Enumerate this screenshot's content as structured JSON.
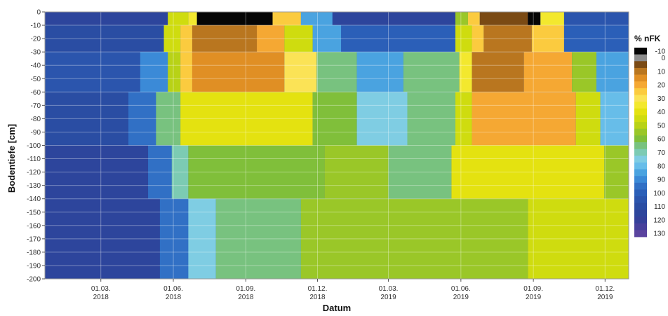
{
  "chart_data": {
    "type": "heatmap",
    "xlabel": "Datum",
    "ylabel": "Bodentiefe [cm]",
    "ylim": [
      -200,
      0
    ],
    "y_ticks": [
      0,
      -10,
      -20,
      -30,
      -40,
      -50,
      -60,
      -70,
      -80,
      -90,
      -100,
      -110,
      -120,
      -130,
      -140,
      -150,
      -160,
      -170,
      -180,
      -190,
      -200
    ],
    "x_range": [
      "2017-12-20",
      "2019-12-31"
    ],
    "x_ticks": [
      {
        "line1": "01.03.",
        "line2": "2018",
        "date": "2018-03-01"
      },
      {
        "line1": "01.06.",
        "line2": "2018",
        "date": "2018-06-01"
      },
      {
        "line1": "01.09.",
        "line2": "2018",
        "date": "2018-09-01"
      },
      {
        "line1": "01.12.",
        "line2": "2018",
        "date": "2018-12-01"
      },
      {
        "line1": "01.03.",
        "line2": "2019",
        "date": "2019-03-01"
      },
      {
        "line1": "01.06.",
        "line2": "2019",
        "date": "2019-06-01"
      },
      {
        "line1": "01.09.",
        "line2": "2019",
        "date": "2019-09-01"
      },
      {
        "line1": "01.12.",
        "line2": "2019",
        "date": "2019-12-01"
      }
    ],
    "grid": true,
    "legend": {
      "title": "% nFK",
      "placement": "right",
      "entries": [
        {
          "label": "-10",
          "color": "#050505"
        },
        {
          "label": "0",
          "color": "#8c8c8c"
        },
        {
          "label": "",
          "color": "#7a4a14"
        },
        {
          "label": "10",
          "color": "#b9761f"
        },
        {
          "label": "",
          "color": "#e08f24"
        },
        {
          "label": "20",
          "color": "#f5a833"
        },
        {
          "label": "",
          "color": "#fbcb3f"
        },
        {
          "label": "30",
          "color": "#fbe356"
        },
        {
          "label": "",
          "color": "#f3e82e"
        },
        {
          "label": "40",
          "color": "#e4e210"
        },
        {
          "label": "",
          "color": "#cfdc0f"
        },
        {
          "label": "50",
          "color": "#b8d216"
        },
        {
          "label": "",
          "color": "#9ac728"
        },
        {
          "label": "60",
          "color": "#80bf3a"
        },
        {
          "label": "",
          "color": "#78c27f"
        },
        {
          "label": "70",
          "color": "#7ccbb3"
        },
        {
          "label": "",
          "color": "#7fcde3"
        },
        {
          "label": "80",
          "color": "#67bde9"
        },
        {
          "label": "",
          "color": "#4aa3e0"
        },
        {
          "label": "90",
          "color": "#3b8ad7"
        },
        {
          "label": "",
          "color": "#3170c5"
        },
        {
          "label": "100",
          "color": "#2b5fb8"
        },
        {
          "label": "",
          "color": "#2b55ad"
        },
        {
          "label": "110",
          "color": "#2a4da3"
        },
        {
          "label": "",
          "color": "#2d459c"
        },
        {
          "label": "120",
          "color": "#34409a"
        },
        {
          "label": "",
          "color": "#46409c"
        },
        {
          "label": "130",
          "color": "#5b449f"
        }
      ]
    },
    "cells_note": "",
    "depth_layers": [
      {
        "depth": [
          0,
          -10
        ],
        "segments": [
          [
            "2017-12-20",
            "2018-05-25",
            110
          ],
          [
            "2018-05-25",
            "2018-06-20",
            40
          ],
          [
            "2018-06-20",
            "2018-07-01",
            30
          ],
          [
            "2018-07-01",
            "2018-10-05",
            -10
          ],
          [
            "2018-10-05",
            "2018-11-10",
            20
          ],
          [
            "2018-11-10",
            "2018-12-20",
            80
          ],
          [
            "2018-12-20",
            "2019-05-25",
            110
          ],
          [
            "2019-05-25",
            "2019-06-10",
            50
          ],
          [
            "2019-06-10",
            "2019-06-25",
            20
          ],
          [
            "2019-06-25",
            "2019-08-25",
            0
          ],
          [
            "2019-08-25",
            "2019-09-10",
            -10
          ],
          [
            "2019-09-10",
            "2019-10-10",
            30
          ],
          [
            "2019-10-10",
            "2019-12-31",
            100
          ]
        ]
      },
      {
        "depth": [
          -10,
          -30
        ],
        "segments": [
          [
            "2017-12-20",
            "2018-05-20",
            105
          ],
          [
            "2018-05-20",
            "2018-06-10",
            40
          ],
          [
            "2018-06-10",
            "2018-06-25",
            20
          ],
          [
            "2018-06-25",
            "2018-09-15",
            5
          ],
          [
            "2018-09-15",
            "2018-10-20",
            15
          ],
          [
            "2018-10-20",
            "2018-11-25",
            40
          ],
          [
            "2018-11-25",
            "2018-12-31",
            80
          ],
          [
            "2018-12-31",
            "2019-05-25",
            95
          ],
          [
            "2019-05-25",
            "2019-06-15",
            40
          ],
          [
            "2019-06-15",
            "2019-06-30",
            20
          ],
          [
            "2019-06-30",
            "2019-08-30",
            5
          ],
          [
            "2019-08-30",
            "2019-10-10",
            20
          ],
          [
            "2019-10-10",
            "2019-12-31",
            95
          ]
        ]
      },
      {
        "depth": [
          -30,
          -60
        ],
        "segments": [
          [
            "2017-12-20",
            "2018-04-20",
            100
          ],
          [
            "2018-04-20",
            "2018-05-25",
            85
          ],
          [
            "2018-05-25",
            "2018-06-10",
            45
          ],
          [
            "2018-06-10",
            "2018-06-25",
            20
          ],
          [
            "2018-06-25",
            "2018-10-20",
            10
          ],
          [
            "2018-10-20",
            "2018-11-30",
            25
          ],
          [
            "2018-11-30",
            "2019-01-20",
            60
          ],
          [
            "2019-01-20",
            "2019-03-20",
            80
          ],
          [
            "2019-03-20",
            "2019-05-30",
            60
          ],
          [
            "2019-05-30",
            "2019-06-15",
            30
          ],
          [
            "2019-06-15",
            "2019-08-20",
            5
          ],
          [
            "2019-08-20",
            "2019-10-20",
            15
          ],
          [
            "2019-10-20",
            "2019-11-20",
            50
          ],
          [
            "2019-11-20",
            "2019-12-31",
            80
          ]
        ]
      },
      {
        "depth": [
          -60,
          -100
        ],
        "segments": [
          [
            "2017-12-20",
            "2018-04-05",
            105
          ],
          [
            "2018-04-05",
            "2018-05-10",
            90
          ],
          [
            "2018-05-10",
            "2018-06-10",
            60
          ],
          [
            "2018-06-10",
            "2018-11-25",
            35
          ],
          [
            "2018-11-25",
            "2019-01-20",
            55
          ],
          [
            "2019-01-20",
            "2019-03-25",
            70
          ],
          [
            "2019-03-25",
            "2019-05-25",
            60
          ],
          [
            "2019-05-25",
            "2019-06-15",
            40
          ],
          [
            "2019-06-15",
            "2019-10-25",
            15
          ],
          [
            "2019-10-25",
            "2019-11-25",
            40
          ],
          [
            "2019-11-25",
            "2019-12-31",
            75
          ]
        ]
      },
      {
        "depth": [
          -100,
          -140
        ],
        "segments": [
          [
            "2017-12-20",
            "2018-04-30",
            110
          ],
          [
            "2018-04-30",
            "2018-05-30",
            90
          ],
          [
            "2018-05-30",
            "2018-06-20",
            65
          ],
          [
            "2018-06-20",
            "2018-12-10",
            55
          ],
          [
            "2018-12-10",
            "2019-03-01",
            50
          ],
          [
            "2019-03-01",
            "2019-05-20",
            60
          ],
          [
            "2019-05-20",
            "2019-11-30",
            35
          ],
          [
            "2019-11-30",
            "2019-12-31",
            50
          ]
        ]
      },
      {
        "depth": [
          -140,
          -200
        ],
        "segments": [
          [
            "2017-12-20",
            "2018-05-15",
            110
          ],
          [
            "2018-05-15",
            "2018-06-20",
            90
          ],
          [
            "2018-06-20",
            "2018-07-25",
            70
          ],
          [
            "2018-07-25",
            "2018-11-10",
            60
          ],
          [
            "2018-11-10",
            "2019-08-25",
            50
          ],
          [
            "2019-08-25",
            "2019-12-31",
            40
          ]
        ]
      }
    ]
  }
}
